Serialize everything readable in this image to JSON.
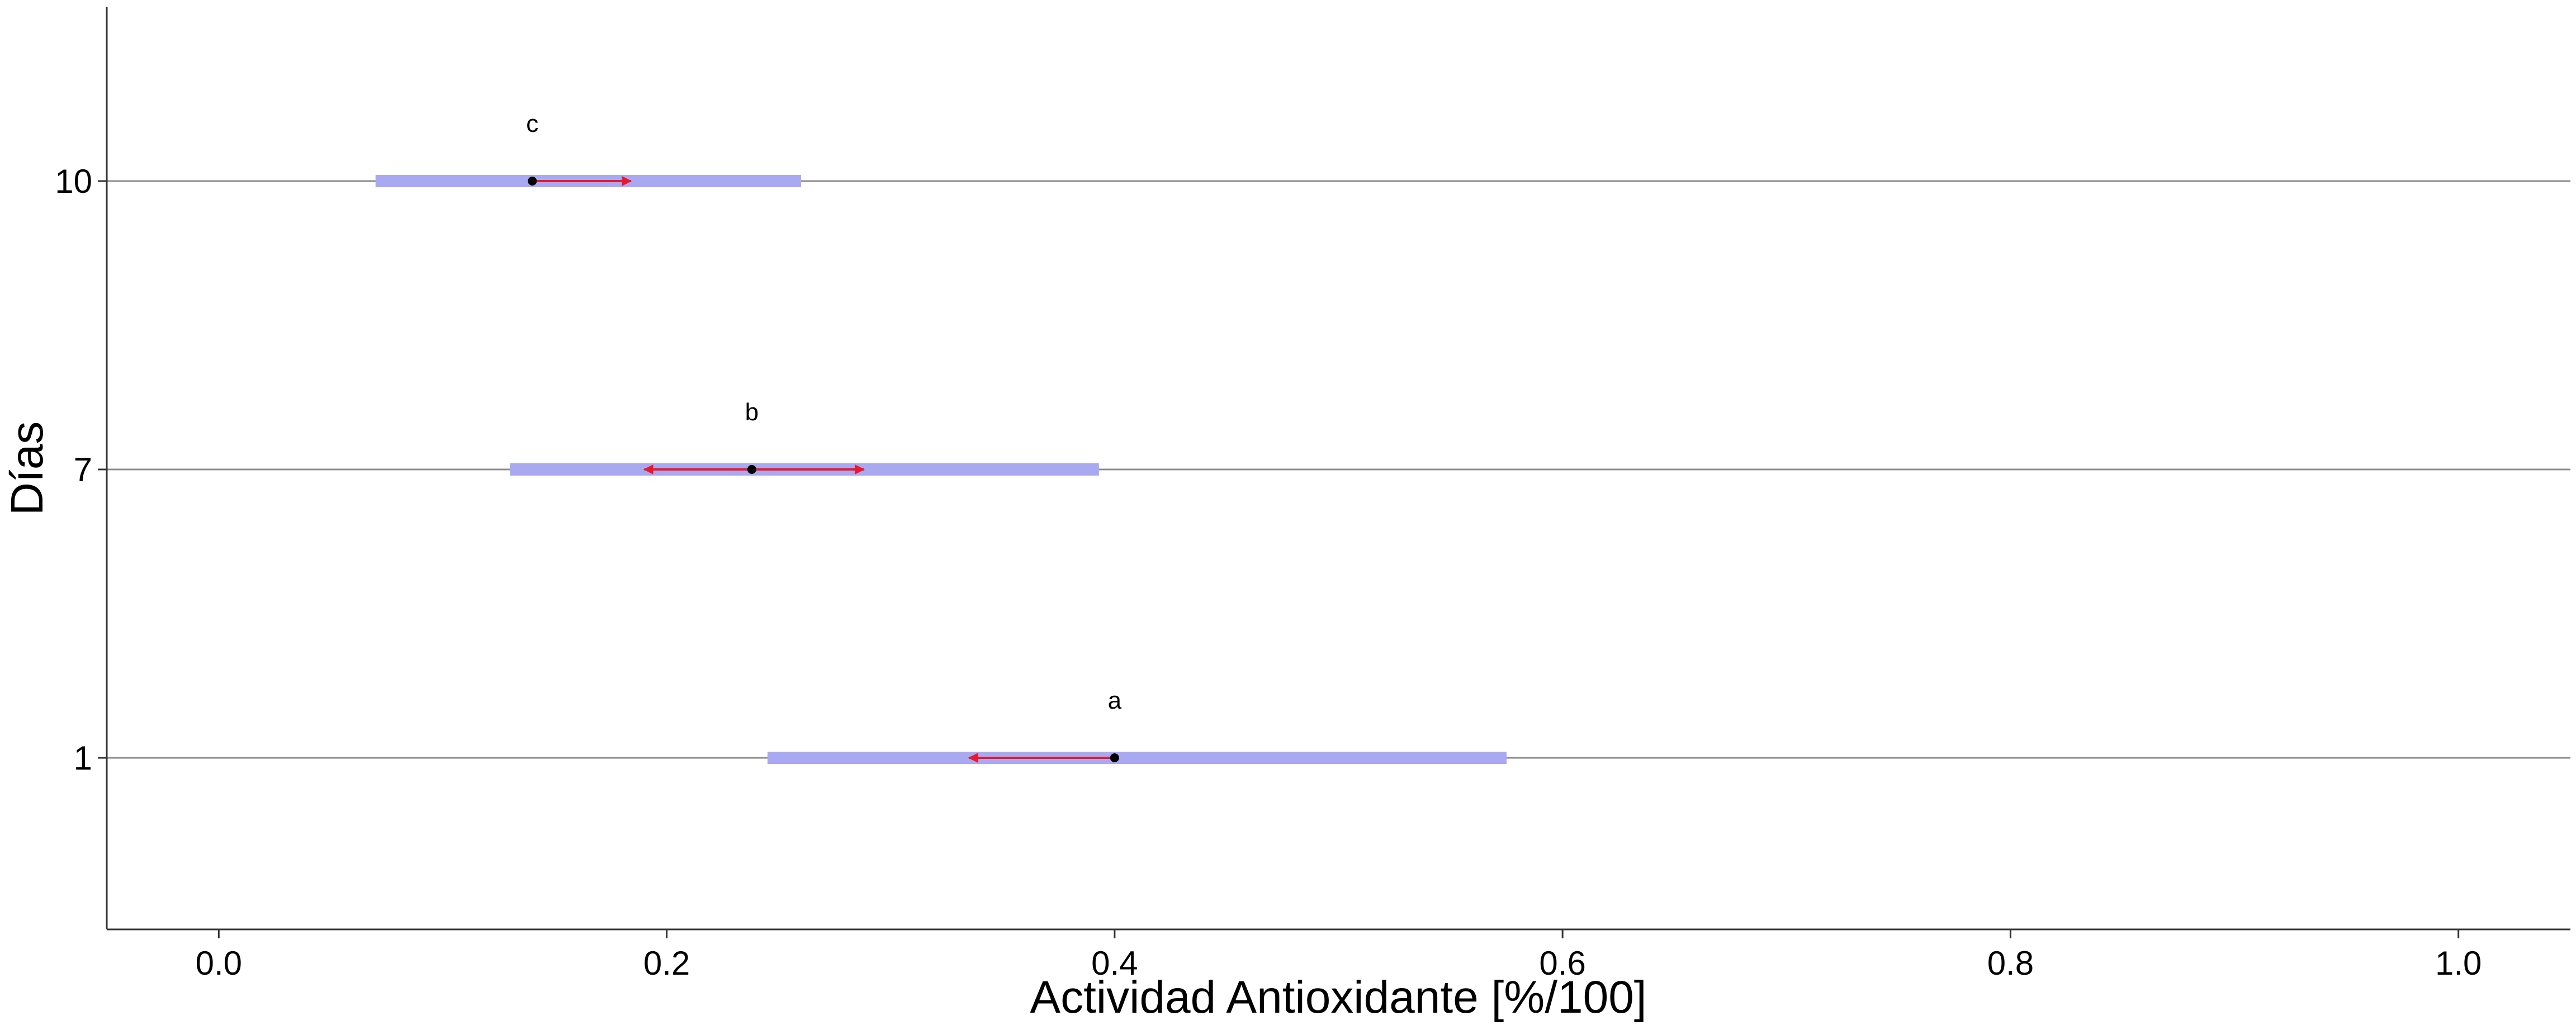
{
  "chart_data": {
    "type": "scatter",
    "title": "",
    "xlabel": "Actividad Antioxidante [%/100]",
    "ylabel": "Días",
    "xlim": [
      -0.05,
      1.05
    ],
    "x_ticks": [
      "0.0",
      "0.2",
      "0.4",
      "0.6",
      "0.8",
      "1.0"
    ],
    "y_ticks": [
      "1",
      "7",
      "10"
    ],
    "grid": "horizontal lines at each category",
    "categories": [
      {
        "label": "1",
        "mean": 0.4,
        "group_letter": "a",
        "arrow_range": [
          0.335,
          0.4
        ],
        "interval": [
          0.245,
          0.575
        ]
      },
      {
        "label": "7",
        "mean": 0.238,
        "group_letter": "b",
        "arrow_range": [
          0.19,
          0.288
        ],
        "interval": [
          0.13,
          0.393
        ]
      },
      {
        "label": "10",
        "mean": 0.14,
        "group_letter": "c",
        "arrow_range": [
          0.14,
          0.184
        ],
        "interval": [
          0.07,
          0.26
        ]
      }
    ],
    "colors": {
      "interval": "#a9a9f2",
      "arrow": "#e8192c",
      "point": "#000000",
      "gridline": "#8c8c8c",
      "axis": "#333333"
    }
  }
}
